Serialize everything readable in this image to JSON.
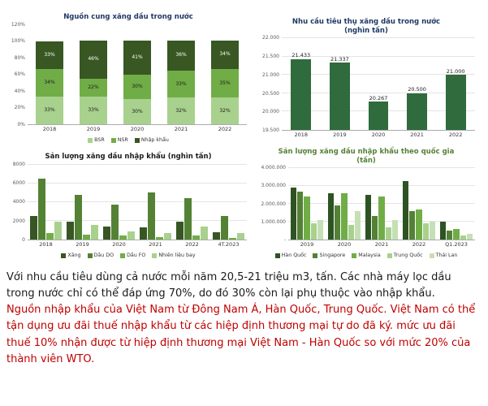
{
  "page": {
    "background": "#ffffff"
  },
  "chart_data": [
    {
      "id": "domestic-supply",
      "type": "stacked100",
      "title": "Nguồn cung xăng dầu trong nước",
      "title_color": "#1F3864",
      "categories": [
        "2018",
        "2019",
        "2020",
        "2021",
        "2022"
      ],
      "series": [
        {
          "name": "BSR",
          "color": "#A9D18E",
          "label_color": "#1a1a1a",
          "values": [
            33,
            33,
            30,
            32,
            32
          ]
        },
        {
          "name": "NSR",
          "color": "#70AD47",
          "label_color": "#1a1a1a",
          "values": [
            34,
            22,
            30,
            33,
            35
          ]
        },
        {
          "name": "Nhập khẩu",
          "color": "#385723",
          "label_color": "#ffffff",
          "values": [
            33,
            46,
            41,
            36,
            34
          ]
        }
      ],
      "value_suffix": "%",
      "ymin": 0,
      "ymax": 120,
      "yticks": [
        {
          "label": "0%",
          "v": 0
        },
        {
          "label": "20%",
          "v": 20
        },
        {
          "label": "40%",
          "v": 40
        },
        {
          "label": "60%",
          "v": 60
        },
        {
          "label": "80%",
          "v": 80
        },
        {
          "label": "100%",
          "v": 100
        },
        {
          "label": "120%",
          "v": 120
        }
      ],
      "grid": false,
      "legend": true
    },
    {
      "id": "domestic-demand",
      "type": "bar",
      "title": "Nhu cầu tiêu thụ xăng dầu trong nước",
      "title2": "(nghìn tấn)",
      "title_color": "#1F3864",
      "categories": [
        "2018",
        "2019",
        "2020",
        "2021",
        "2022"
      ],
      "series": [
        {
          "name": "Nhu cầu",
          "color": "#2F6B3C",
          "values": [
            21433,
            21337,
            20267,
            20500,
            21000
          ],
          "labels": [
            "21.433",
            "21.337",
            "20.267",
            "20.500",
            "21.000"
          ]
        }
      ],
      "ymin": 19500,
      "ymax": 22000,
      "yticks": [
        {
          "label": "19.500",
          "v": 19500
        },
        {
          "label": "20.000",
          "v": 20000
        },
        {
          "label": "20.500",
          "v": 20500
        },
        {
          "label": "21.000",
          "v": 21000
        },
        {
          "label": "21.500",
          "v": 21500
        },
        {
          "label": "22.000",
          "v": 22000
        }
      ],
      "grid": true,
      "legend": false
    },
    {
      "id": "import-volume",
      "type": "grouped",
      "title": "Sản lượng xăng dầu nhập khẩu (nghìn tấn)",
      "title_color": "#1a1a1a",
      "categories": [
        "2018",
        "2019",
        "2020",
        "2021",
        "2022",
        "4T.2023"
      ],
      "series": [
        {
          "name": "Xăng",
          "color": "#375623",
          "values": [
            2500,
            1900,
            1400,
            1300,
            1900,
            800
          ]
        },
        {
          "name": "Dầu DO",
          "color": "#548235",
          "values": [
            6500,
            4800,
            3700,
            5000,
            4400,
            2500
          ]
        },
        {
          "name": "Dầu FO",
          "color": "#70AD47",
          "values": [
            700,
            500,
            400,
            300,
            400,
            200
          ]
        },
        {
          "name": "Nhiên liệu bay",
          "color": "#A9D18E",
          "values": [
            1900,
            1600,
            900,
            700,
            1400,
            700
          ]
        }
      ],
      "ymin": 0,
      "ymax": 8000,
      "yticks": [
        {
          "label": "0",
          "v": 0
        },
        {
          "label": "2000",
          "v": 2000
        },
        {
          "label": "4000",
          "v": 4000
        },
        {
          "label": "6000",
          "v": 6000
        },
        {
          "label": "8000",
          "v": 8000
        }
      ],
      "grid": true,
      "legend": true
    },
    {
      "id": "import-by-country",
      "type": "grouped",
      "title": "Sản lượng xăng dầu nhập khẩu theo quốc gia",
      "title2": "(tấn)",
      "title_color": "#538135",
      "categories": [
        "2019",
        "2020",
        "2021",
        "2022",
        "Q1.2023"
      ],
      "series": [
        {
          "name": "Hàn Quốc",
          "color": "#2E5323",
          "values": [
            2900000,
            2600000,
            2500000,
            3300000,
            1000000
          ]
        },
        {
          "name": "Singapore",
          "color": "#538135",
          "values": [
            2700000,
            1900000,
            1300000,
            1600000,
            500000
          ]
        },
        {
          "name": "Malaysia",
          "color": "#70AD47",
          "values": [
            2400000,
            2600000,
            2400000,
            1700000,
            600000
          ]
        },
        {
          "name": "Trung Quốc",
          "color": "#A9D18E",
          "values": [
            900000,
            800000,
            700000,
            900000,
            250000
          ]
        },
        {
          "name": "Thái Lan",
          "color": "#C5E0B4",
          "values": [
            1100000,
            1600000,
            1100000,
            1000000,
            300000
          ]
        }
      ],
      "ymin": 0,
      "ymax": 4000000,
      "yticks": [
        {
          "label": "-",
          "v": 0
        },
        {
          "label": "1.000.000",
          "v": 1000000
        },
        {
          "label": "2.000.000",
          "v": 2000000
        },
        {
          "label": "3.000.000",
          "v": 3000000
        },
        {
          "label": "4.000.000",
          "v": 4000000
        }
      ],
      "grid": true,
      "legend": true
    }
  ],
  "paragraphs": [
    {
      "text": "Với nhu cầu tiêu dùng cả nước mỗi năm 20,5-21 triệu m3, tấn. Các nhà máy lọc dầu trong nước chỉ có thể đáp ứng 70%, do đó 30% còn lại phụ thuộc vào nhập khẩu.",
      "color": "#1a1a1a"
    },
    {
      "text": "Nguồn nhập khẩu của Việt Nam từ Đông Nam Á, Hàn Quốc, Trung Quốc. Việt Nam có thể tận dụng ưu đãi thuế nhập khẩu từ các hiệp định thương mại tự do đã ký. mức ưu đãi thuế 10% nhận được từ hiệp định thương mại Việt Nam - Hàn Quốc so với mức 20% của thành viên WTO.",
      "color": "#C00000"
    }
  ]
}
